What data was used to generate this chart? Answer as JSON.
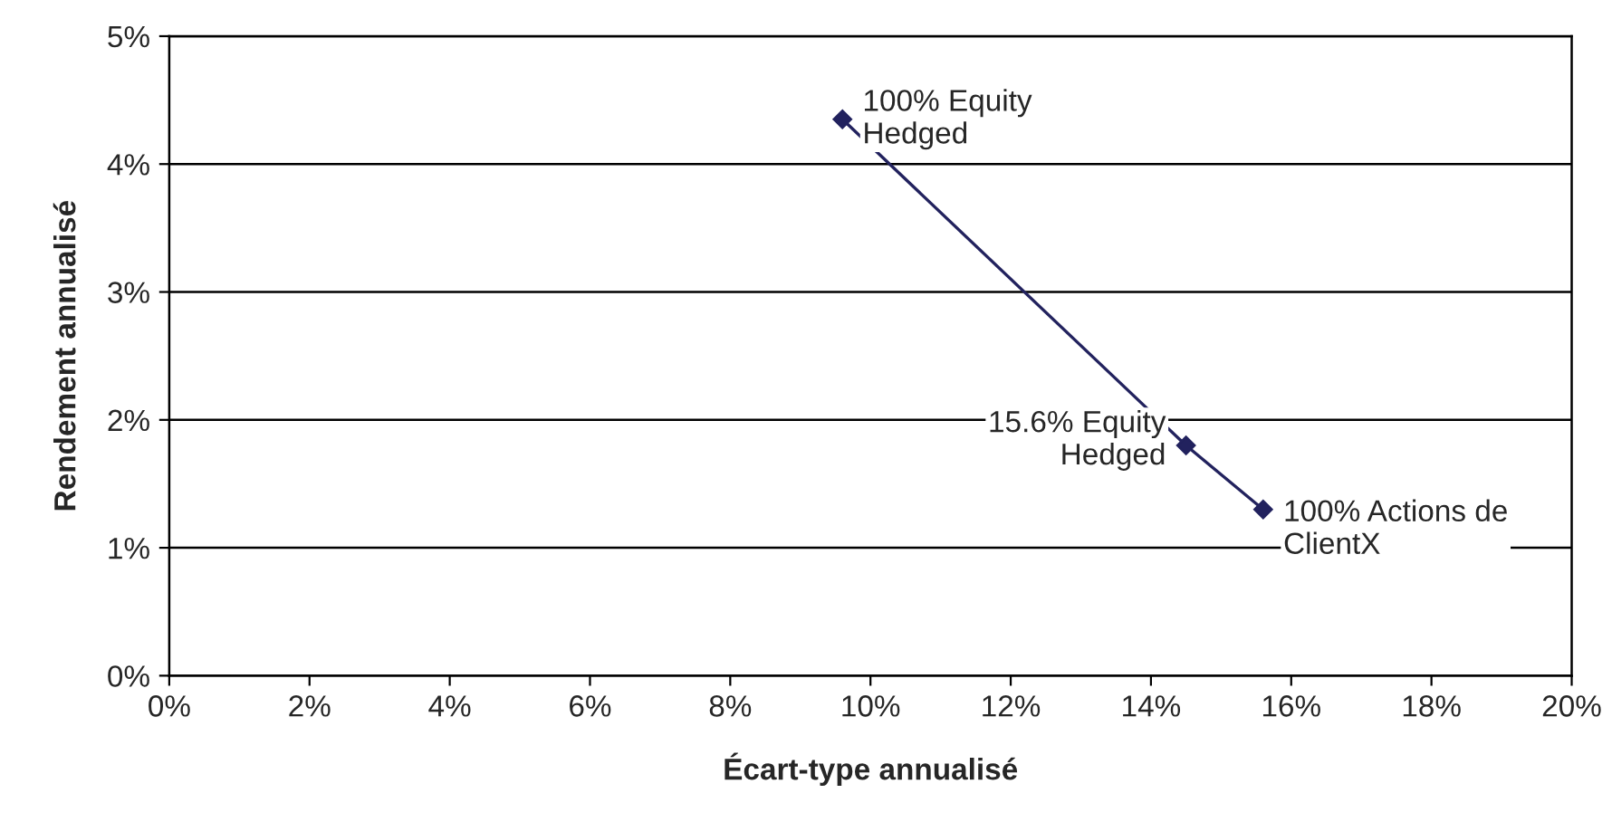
{
  "chart_data": {
    "type": "line",
    "xlabel": "Écart-type annualisé",
    "ylabel": "Rendement annualisé",
    "x": [
      9.6,
      14.5,
      15.6
    ],
    "series": [
      {
        "color": "#22225e",
        "values": [
          4.35,
          1.8,
          1.3
        ]
      }
    ],
    "marker": "diamond",
    "line_style": "solid",
    "grid": "y",
    "legend": false,
    "xlim": [
      0,
      20
    ],
    "ylim": [
      0,
      5
    ],
    "xticks": [
      {
        "value": 0,
        "label": "0%"
      },
      {
        "value": 2,
        "label": "2%"
      },
      {
        "value": 4,
        "label": "4%"
      },
      {
        "value": 6,
        "label": "6%"
      },
      {
        "value": 8,
        "label": "8%"
      },
      {
        "value": 10,
        "label": "10%"
      },
      {
        "value": 12,
        "label": "12%"
      },
      {
        "value": 14,
        "label": "14%"
      },
      {
        "value": 16,
        "label": "16%"
      },
      {
        "value": 18,
        "label": "18%"
      },
      {
        "value": 20,
        "label": "20%"
      }
    ],
    "yticks": [
      {
        "value": 0,
        "label": "0%"
      },
      {
        "value": 1,
        "label": "1%"
      },
      {
        "value": 2,
        "label": "2%"
      },
      {
        "value": 3,
        "label": "3%"
      },
      {
        "value": 4,
        "label": "4%"
      },
      {
        "value": 5,
        "label": "5%"
      }
    ],
    "annotations": [
      {
        "text": "100% Equity\nHedged",
        "x": 9.6,
        "y": 4.35
      },
      {
        "text": "15.6% Equity\nHedged",
        "x": 14.5,
        "y": 1.8
      },
      {
        "text": "100% Actions de\nClientX",
        "x": 15.6,
        "y": 1.3
      }
    ]
  }
}
